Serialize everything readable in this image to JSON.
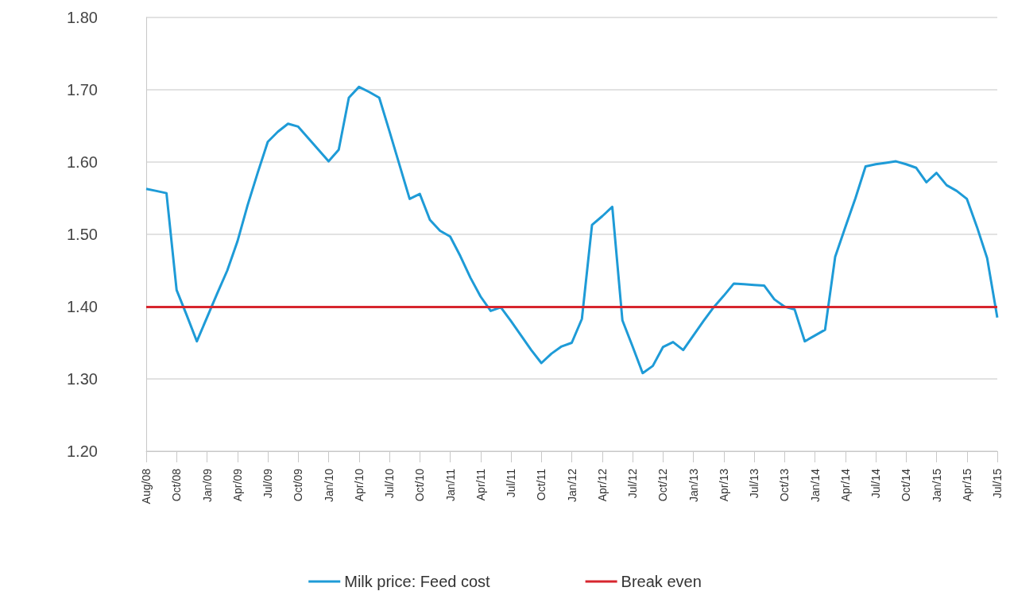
{
  "chart_data": {
    "type": "line",
    "categories": [
      "Aug/08",
      null,
      null,
      "Oct/08",
      null,
      null,
      "Jan/09",
      null,
      null,
      "Apr/09",
      null,
      null,
      "Jul/09",
      null,
      null,
      "Oct/09",
      null,
      null,
      "Jan/10",
      null,
      null,
      "Apr/10",
      null,
      null,
      "Jul/10",
      null,
      null,
      "Oct/10",
      null,
      null,
      "Jan/11",
      null,
      null,
      "Apr/11",
      null,
      null,
      "Jul/11",
      null,
      null,
      "Oct/11",
      null,
      null,
      "Jan/12",
      null,
      null,
      "Apr/12",
      null,
      null,
      "Jul/12",
      null,
      null,
      "Oct/12",
      null,
      null,
      "Jan/13",
      null,
      null,
      "Apr/13",
      null,
      null,
      "Jul/13",
      null,
      null,
      "Oct/13",
      null,
      null,
      "Jan/14",
      null,
      null,
      "Apr/14",
      null,
      null,
      "Jul/14",
      null,
      null,
      "Oct/14",
      null,
      null,
      "Jan/15",
      null,
      null,
      "Apr/15",
      null,
      null,
      "Jul/15"
    ],
    "series": [
      {
        "name": "Milk price: Feed cost",
        "color": "#1e9bd7",
        "values": [
          1.563,
          1.56,
          1.557,
          1.423,
          1.388,
          1.352,
          1.385,
          1.418,
          1.45,
          1.49,
          1.54,
          1.585,
          1.628,
          1.642,
          1.653,
          1.649,
          1.633,
          1.617,
          1.601,
          1.617,
          1.689,
          1.704,
          1.697,
          1.689,
          1.643,
          1.596,
          1.549,
          1.556,
          1.52,
          1.505,
          1.497,
          1.47,
          1.44,
          1.414,
          1.394,
          1.399,
          1.38,
          1.36,
          1.34,
          1.322,
          1.335,
          1.345,
          1.35,
          1.383,
          1.513,
          1.525,
          1.538,
          1.381,
          1.345,
          1.308,
          1.318,
          1.344,
          1.351,
          1.34,
          1.36,
          1.38,
          1.399,
          1.415,
          1.432,
          1.431,
          1.43,
          1.429,
          1.41,
          1.4,
          1.396,
          1.352,
          1.36,
          1.368,
          1.469,
          1.51,
          1.55,
          1.594,
          1.597,
          1.599,
          1.601,
          1.597,
          1.592,
          1.572,
          1.585,
          1.568,
          1.56,
          1.549,
          1.51,
          1.467,
          1.385
        ]
      }
    ],
    "ylim": [
      1.2,
      1.8
    ],
    "yticks": [
      {
        "value": 1.2,
        "label": "1.20"
      },
      {
        "value": 1.3,
        "label": "1.30"
      },
      {
        "value": 1.4,
        "label": "1.40"
      },
      {
        "value": 1.5,
        "label": "1.50"
      },
      {
        "value": 1.6,
        "label": "1.60"
      },
      {
        "value": 1.7,
        "label": "1.70"
      },
      {
        "value": 1.8,
        "label": "1.80"
      }
    ],
    "ref_lines": [
      {
        "axis": "y",
        "value": 1.4,
        "label": "Break even",
        "color": "#d7262e"
      }
    ],
    "grid": "y",
    "legend": "bottom",
    "marker": "none",
    "line_style": "solid"
  }
}
